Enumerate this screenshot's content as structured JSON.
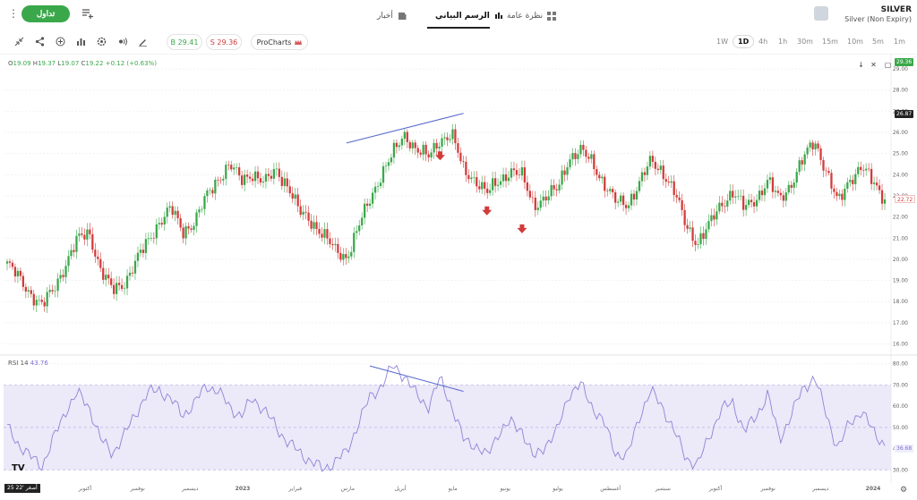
{
  "topbar": {
    "menu_icon": "more-vertical-icon",
    "trade_label": "تداول",
    "list_icon": "playlist-add-icon",
    "tabs": [
      {
        "label": "نظرة عامة",
        "icon": "grid-icon"
      },
      {
        "label": "الرسم البياني",
        "icon": "candles-icon"
      },
      {
        "label": "أخبار",
        "icon": "news-icon"
      }
    ],
    "instrument": {
      "name": "SILVER",
      "subtitle": "Silver (Non Expiry)"
    }
  },
  "toolbar": {
    "tools": [
      "collapse-icon",
      "share-icon",
      "add-icon",
      "indicators-icon",
      "settings-icon",
      "signal-icon",
      "draw-icon"
    ],
    "buy_label": "B 29.41",
    "sell_label": "S 29.36",
    "procharts_label": "ProCharts",
    "timeframes": [
      "1W",
      "1D",
      "4h",
      "1h",
      "30m",
      "15m",
      "10m",
      "5m",
      "1m"
    ],
    "active_timeframe": "1D"
  },
  "ohlc": {
    "o_label": "O",
    "o": "19.09",
    "h_label": "H",
    "h": "19.37",
    "l_label": "L",
    "l": "19.07",
    "c_label": "C",
    "c": "19.22",
    "change": "+0.12 (+0.63%)"
  },
  "rsi": {
    "label": "RSI",
    "period": "14",
    "value": "43.76"
  },
  "bottom": {
    "time": "25 22' أصغر"
  },
  "colors": {
    "up": "#3aa84a",
    "down": "#d23b3b",
    "rsi": "#8d84d6",
    "band": "#ece9f9",
    "trendline": "#5566cc"
  },
  "chart_data": {
    "type": "candlestick",
    "y_ticks": [
      "29.00",
      "28.00",
      "27.00",
      "26.00",
      "25.00",
      "24.00",
      "23.00",
      "22.00",
      "21.00",
      "20.00",
      "19.00",
      "18.00",
      "17.00",
      "16.00"
    ],
    "ylim": [
      15.6,
      29.3
    ],
    "price_tags": {
      "last": "29.36",
      "crosshair": "26.87",
      "current": "22.72"
    },
    "rsi_ticks": [
      "80.00",
      "70.00",
      "60.00",
      "50.00",
      "40.00",
      "30.00"
    ],
    "rsi_ylim": [
      28,
      82
    ],
    "rsi_band": [
      30,
      70
    ],
    "rsi_tag": "36.68",
    "x_labels": [
      "أكتوبر",
      "نوفمبر",
      "ديسمبر",
      "2023",
      "فبراير",
      "مارس",
      "أبريل",
      "مايو",
      "يونيو",
      "يوليو",
      "أغسطس",
      "سبتمبر",
      "أكتوبر",
      "نوفمبر",
      "ديسمبر",
      "2024"
    ],
    "price_path": [
      19.8,
      19.1,
      18.4,
      17.8,
      18.6,
      19.8,
      20.9,
      21.3,
      19.5,
      18.5,
      18.9,
      19.9,
      20.8,
      21.8,
      22.4,
      21.3,
      21.8,
      22.9,
      23.8,
      24.5,
      23.7,
      24.1,
      23.6,
      24.2,
      23.5,
      22.2,
      21.8,
      21.2,
      20.4,
      20.1,
      21.5,
      22.8,
      24.1,
      25.0,
      25.9,
      25.2,
      24.8,
      25.7,
      25.9,
      24.2,
      23.8,
      23.1,
      23.7,
      24.2,
      23.9,
      22.6,
      22.9,
      23.3,
      24.8,
      25.1,
      24.6,
      23.6,
      22.7,
      22.6,
      23.6,
      24.6,
      24.2,
      23.2,
      21.6,
      20.8,
      21.6,
      22.6,
      23.2,
      22.4,
      22.9,
      23.7,
      22.8,
      23.6,
      24.7,
      25.6,
      24.2,
      22.6,
      23.8,
      24.4,
      23.6,
      22.9
    ],
    "rsi_path": [
      50,
      42,
      36,
      32,
      45,
      58,
      66,
      60,
      44,
      38,
      46,
      57,
      66,
      68,
      63,
      56,
      61,
      70,
      67,
      60,
      55,
      64,
      58,
      50,
      43,
      38,
      34,
      30,
      34,
      38,
      52,
      64,
      70,
      79,
      74,
      65,
      60,
      73,
      60,
      44,
      42,
      36,
      48,
      52,
      49,
      35,
      42,
      48,
      66,
      70,
      60,
      52,
      38,
      36,
      55,
      67,
      60,
      48,
      36,
      32,
      46,
      58,
      62,
      48,
      55,
      66,
      44,
      56,
      68,
      74,
      56,
      40,
      52,
      58,
      48,
      42
    ],
    "arrows": [
      {
        "x_index": 37,
        "price": 24.85
      },
      {
        "x_index": 41,
        "price": 22.25
      },
      {
        "x_index": 44,
        "price": 21.4
      }
    ],
    "trendline_price": {
      "from": {
        "x_index": 29,
        "price": 25.5
      },
      "to": {
        "x_index": 39,
        "price": 26.9
      }
    },
    "trendline_rsi": {
      "from": {
        "x_index": 31,
        "rsi": 79
      },
      "to": {
        "x_index": 39,
        "rsi": 67
      }
    }
  }
}
